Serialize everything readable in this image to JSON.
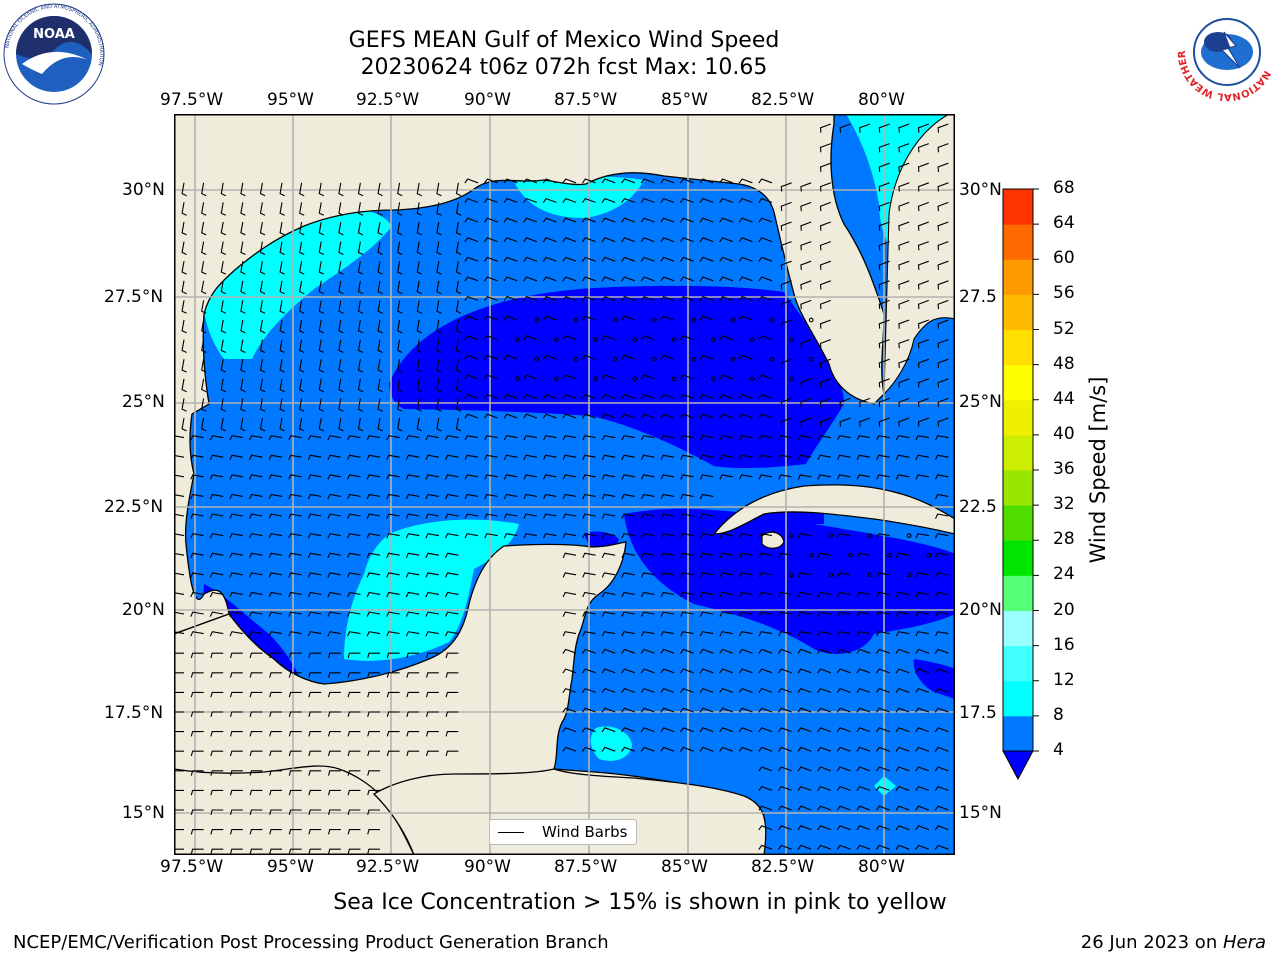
{
  "title": {
    "line1": "GEFS MEAN Gulf of Mexico Wind Speed",
    "line2": "20230624 t06z 072h fcst   Max: 10.65"
  },
  "axes": {
    "lon_labels": [
      "97.5°W",
      "95°W",
      "92.5°W",
      "90°W",
      "87.5°W",
      "85°W",
      "82.5°W",
      "80°W"
    ],
    "lat_labels": [
      "30°N",
      "27.5°N",
      "25°N",
      "22.5°N",
      "20°N",
      "17.5°N",
      "15°N"
    ],
    "lat_labels_right": [
      "30°N",
      "27.5",
      "25°N",
      "22.5",
      "20°N",
      "17.5",
      "15°N"
    ]
  },
  "colorbar": {
    "title": "Wind Speed [m/s]",
    "levels": [
      "4",
      "8",
      "12",
      "16",
      "20",
      "24",
      "28",
      "32",
      "36",
      "40",
      "44",
      "48",
      "52",
      "56",
      "60",
      "64",
      "68"
    ],
    "colors": [
      "#0078ff",
      "#00ffff",
      "#40ffff",
      "#99ffff",
      "#55ff77",
      "#00e500",
      "#4fdd00",
      "#99e600",
      "#ccee00",
      "#eef000",
      "#ffff00",
      "#ffe000",
      "#ffbb00",
      "#ff9900",
      "#ff6a00",
      "#ff3300",
      "#ff0000"
    ],
    "under_color": "#0000ff"
  },
  "legend": {
    "label": "Wind Barbs"
  },
  "caption": "Sea Ice Concentration > 15% is shown in pink to yellow",
  "footer": {
    "left": "NCEP/EMC/Verification Post Processing Product Generation Branch",
    "right_prefix": "26 Jun 2023 on ",
    "right_host": "Hera"
  },
  "logos": {
    "noaa": "NOAA",
    "noaa_ring_top": "NATIONAL OCEANIC AND ATMOSPHERIC ADMINISTRATION",
    "noaa_ring_bottom": "U.S. DEPARTMENT OF COMMERCE",
    "nws_ring": "NATIONAL WEATHER SERVICE"
  },
  "colors": {
    "land": "#efecdb",
    "calm": "#0000ff",
    "band4_8": "#0078ff",
    "band8_12": "#00ffff"
  }
}
